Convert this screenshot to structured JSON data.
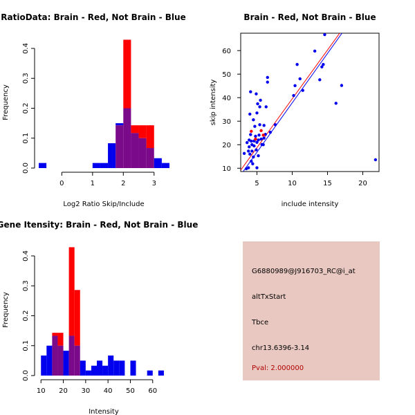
{
  "colors": {
    "red": "#ff0000",
    "blue": "#0000ee",
    "overlap": "#7a0a8a",
    "info_background": "#e8c8c0",
    "pval_text": "#b00000"
  },
  "chart_data": [
    {
      "type": "histogram",
      "title": "RatioData: Brain - Red, Not Brain - Blue",
      "xlabel": "Log2 Ratio Skip/Include",
      "ylabel": "Frequency",
      "xlim": [
        -0.75,
        3.5
      ],
      "ylim": [
        0,
        0.43
      ],
      "x_ticks": [
        "0",
        "1",
        "2",
        "3"
      ],
      "x_tick_values": [
        0,
        1,
        2,
        3
      ],
      "y_ticks": [
        "0.0",
        "0.1",
        "0.2",
        "0.3",
        "0.4"
      ],
      "y_tick_values": [
        0,
        0.1,
        0.2,
        0.3,
        0.4
      ],
      "bin_edges": [
        -0.75,
        -0.5,
        -0.25,
        0,
        0.25,
        0.5,
        0.75,
        1,
        1.25,
        1.5,
        1.75,
        2,
        2.25,
        2.5,
        2.75,
        3,
        3.25,
        3.5
      ],
      "series": [
        {
          "name": "Not Brain",
          "color": "blue",
          "values": [
            0.017,
            0,
            0,
            0,
            0,
            0,
            0,
            0.017,
            0.017,
            0.083,
            0.15,
            0.2,
            0.117,
            0.1,
            0.067,
            0.033,
            0.017
          ]
        },
        {
          "name": "Brain",
          "color": "red",
          "values": [
            0,
            0,
            0,
            0,
            0,
            0,
            0,
            0,
            0,
            0,
            0.143,
            0.429,
            0.143,
            0.143,
            0.143,
            0,
            0
          ]
        }
      ]
    },
    {
      "type": "scatter",
      "title": "Brain - Red, Not Brain - Blue",
      "xlabel": "include intensity",
      "ylabel": "skip intensity",
      "xlim": [
        2.7,
        22.3
      ],
      "ylim": [
        8.6,
        67.4
      ],
      "x_ticks": [
        "5",
        "10",
        "15",
        "20"
      ],
      "x_tick_values": [
        5,
        10,
        15,
        20
      ],
      "y_ticks": [
        "10",
        "20",
        "30",
        "40",
        "50",
        "60"
      ],
      "y_tick_values": [
        10,
        20,
        30,
        40,
        50,
        60
      ],
      "series": [
        {
          "name": "Not Brain",
          "color": "blue",
          "points": [
            [
              3.2,
              16.3
            ],
            [
              3.5,
              9.8
            ],
            [
              3.6,
              20.9
            ],
            [
              3.8,
              10.2
            ],
            [
              3.8,
              17.3
            ],
            [
              3.9,
              19.1
            ],
            [
              3.9,
              22.0
            ],
            [
              4.0,
              16.0
            ],
            [
              4.0,
              33.0
            ],
            [
              4.1,
              42.5
            ],
            [
              4.1,
              24.3
            ],
            [
              4.2,
              21.5
            ],
            [
              4.2,
              13.0
            ],
            [
              4.3,
              17.3
            ],
            [
              4.3,
              20.0
            ],
            [
              4.4,
              11.9
            ],
            [
              4.5,
              14.8
            ],
            [
              4.5,
              30.6
            ],
            [
              4.6,
              19.5
            ],
            [
              4.6,
              21.6
            ],
            [
              4.7,
              27.8
            ],
            [
              4.8,
              23.6
            ],
            [
              4.9,
              17.8
            ],
            [
              4.9,
              41.6
            ],
            [
              5.0,
              10.2
            ],
            [
              5.0,
              33.5
            ],
            [
              5.0,
              21.0
            ],
            [
              5.1,
              37.4
            ],
            [
              5.2,
              15.3
            ],
            [
              5.2,
              22.0
            ],
            [
              5.3,
              24.1
            ],
            [
              5.4,
              28.5
            ],
            [
              5.4,
              36.1
            ],
            [
              5.5,
              38.9
            ],
            [
              5.6,
              22.4
            ],
            [
              5.7,
              20.1
            ],
            [
              5.9,
              20.0
            ],
            [
              6.0,
              22.8
            ],
            [
              6.0,
              28.2
            ],
            [
              6.2,
              24.4
            ],
            [
              6.3,
              36.1
            ],
            [
              6.5,
              46.6
            ],
            [
              6.5,
              48.6
            ],
            [
              6.9,
              25.3
            ],
            [
              7.6,
              28.5
            ],
            [
              10.2,
              40.9
            ],
            [
              10.4,
              45.1
            ],
            [
              10.7,
              54.1
            ],
            [
              11.1,
              48.0
            ],
            [
              11.5,
              43.1
            ],
            [
              13.2,
              59.8
            ],
            [
              13.9,
              47.6
            ],
            [
              14.2,
              53.1
            ],
            [
              14.4,
              54.1
            ],
            [
              14.6,
              66.8
            ],
            [
              16.2,
              37.6
            ],
            [
              17.0,
              45.2
            ],
            [
              21.8,
              13.6
            ]
          ]
        },
        {
          "name": "Brain",
          "color": "red",
          "points": [
            [
              4.2,
              25.7
            ],
            [
              4.8,
              22.4
            ],
            [
              5.6,
              26.0
            ],
            [
              5.9,
              24.1
            ]
          ]
        }
      ],
      "fit_lines": [
        {
          "color": "red",
          "intercept": -2.0,
          "slope": 4.15
        },
        {
          "color": "blue",
          "intercept": -4.2,
          "slope": 4.2
        }
      ]
    },
    {
      "type": "histogram",
      "title": "Gene Itensity: Brain - Red, Not Brain - Blue",
      "xlabel": "Intensity",
      "ylabel": "Frequency",
      "xlim": [
        9,
        67.5
      ],
      "ylim": [
        0,
        0.43
      ],
      "x_ticks": [
        "10",
        "20",
        "30",
        "40",
        "50",
        "60"
      ],
      "x_tick_values": [
        10,
        20,
        30,
        40,
        50,
        60
      ],
      "y_ticks": [
        "0.0",
        "0.1",
        "0.2",
        "0.3",
        "0.4"
      ],
      "y_tick_values": [
        0,
        0.1,
        0.2,
        0.3,
        0.4
      ],
      "bin_edges": [
        10,
        12.5,
        15,
        17.5,
        20,
        22.5,
        25,
        27.5,
        30,
        32.5,
        35,
        37.5,
        40,
        42.5,
        45,
        47.5,
        50,
        52.5,
        55,
        57.5,
        60,
        62.5,
        65
      ],
      "series": [
        {
          "name": "Not Brain",
          "color": "blue",
          "values": [
            0.067,
            0.1,
            0.133,
            0.1,
            0.083,
            0.133,
            0.1,
            0.05,
            0.017,
            0.033,
            0.05,
            0.033,
            0.067,
            0.05,
            0.05,
            0,
            0.05,
            0,
            0,
            0.017,
            0,
            0.017
          ]
        },
        {
          "name": "Brain",
          "color": "red",
          "values": [
            0,
            0,
            0.143,
            0.143,
            0,
            0.429,
            0.286,
            0,
            0,
            0,
            0,
            0,
            0,
            0,
            0,
            0,
            0,
            0,
            0,
            0,
            0,
            0
          ]
        }
      ]
    }
  ],
  "info": {
    "probe_id": "G6880989@J916703_RC@i_at",
    "event_type": "altTxStart",
    "gene": "Tbce",
    "location": "chr13.6396-3.14",
    "pval": "Pval: 2.000000"
  }
}
